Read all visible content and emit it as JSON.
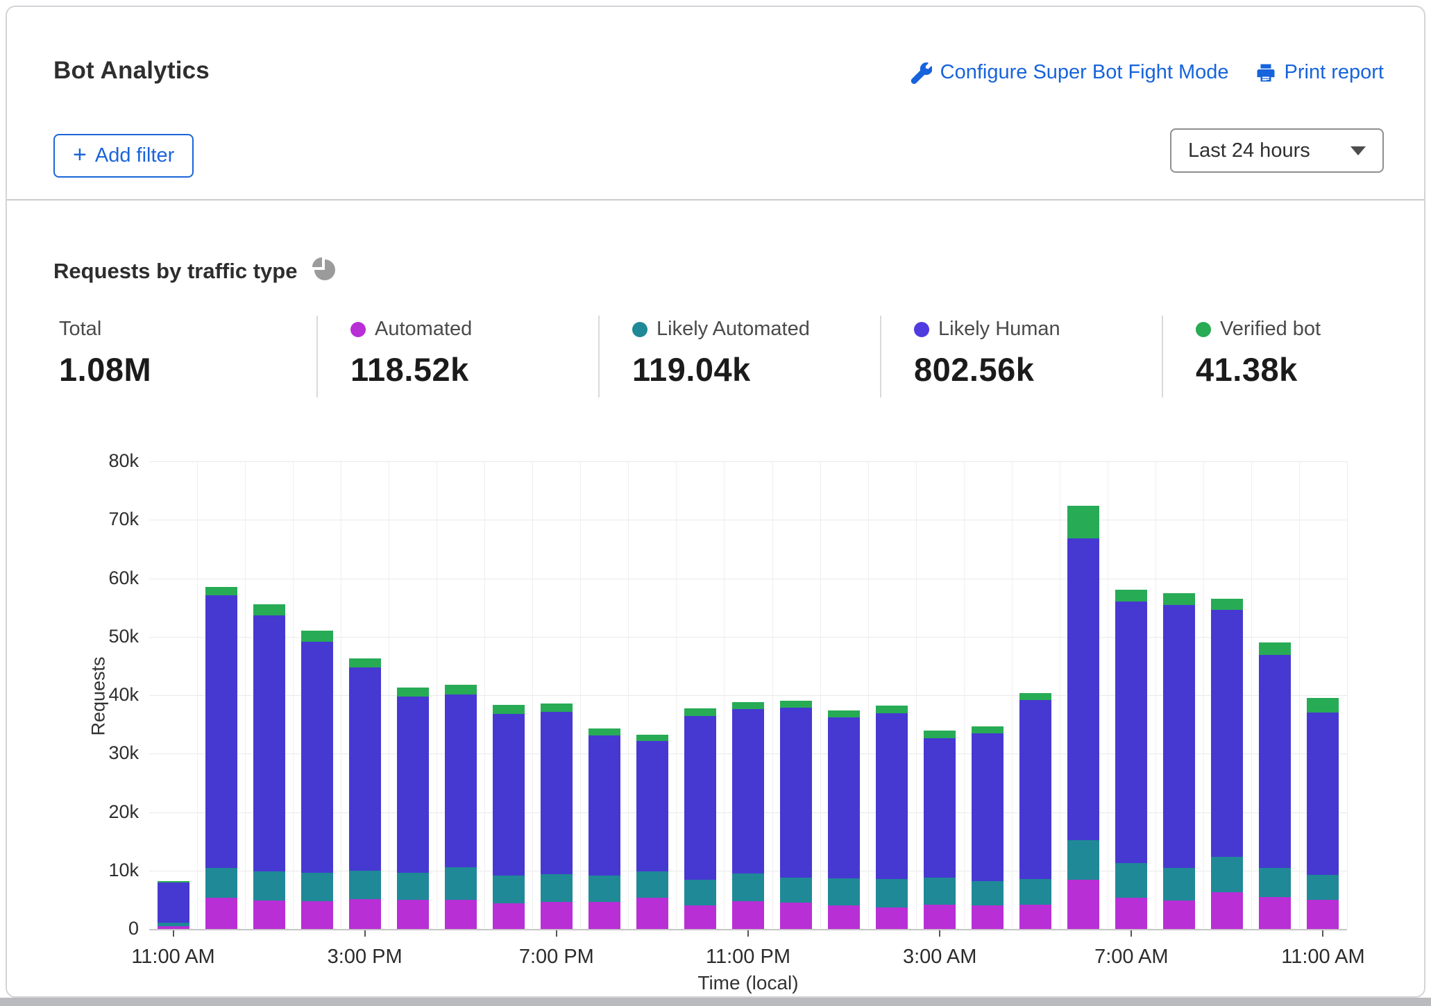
{
  "header": {
    "title": "Bot Analytics",
    "configure_link": "Configure Super Bot Fight Mode",
    "print_link": "Print report",
    "add_filter_label": "Add filter",
    "time_range_value": "Last 24 hours"
  },
  "section": {
    "title": "Requests by traffic type"
  },
  "colors": {
    "link_blue": "#1663dc",
    "automated": "#b82fd6",
    "likely_automated": "#1f8997",
    "likely_human": "#4639d1",
    "likely_human_dot": "#4f3be0",
    "verified_bot": "#27ab55",
    "pie_icon_gray": "#9b9b9b"
  },
  "stats": [
    {
      "label": "Total",
      "value": "1.08M",
      "dot": null
    },
    {
      "label": "Automated",
      "value": "118.52k",
      "dot": "#b82fd6"
    },
    {
      "label": "Likely Automated",
      "value": "119.04k",
      "dot": "#1f8997"
    },
    {
      "label": "Likely Human",
      "value": "802.56k",
      "dot": "#4f3be0"
    },
    {
      "label": "Verified bot",
      "value": "41.38k",
      "dot": "#27ab55"
    }
  ],
  "chart_data": {
    "type": "bar",
    "stacked": true,
    "ylabel": "Requests",
    "xlabel": "Time (local)",
    "ylim": [
      0,
      80000
    ],
    "ytick_labels": [
      "0",
      "10k",
      "20k",
      "30k",
      "40k",
      "50k",
      "60k",
      "70k",
      "80k"
    ],
    "grid": true,
    "legend_position": "top-stats-row",
    "categories": [
      "11:00 AM",
      "12:00 PM",
      "1:00 PM",
      "2:00 PM",
      "3:00 PM",
      "4:00 PM",
      "5:00 PM",
      "6:00 PM",
      "7:00 PM",
      "8:00 PM",
      "9:00 PM",
      "10:00 PM",
      "11:00 PM",
      "12:00 AM",
      "1:00 AM",
      "2:00 AM",
      "3:00 AM",
      "4:00 AM",
      "5:00 AM",
      "6:00 AM",
      "7:00 AM",
      "8:00 AM",
      "9:00 AM",
      "10:00 AM",
      "11:00 AM"
    ],
    "x_tick_indices": [
      0,
      4,
      8,
      12,
      16,
      20,
      24
    ],
    "series": [
      {
        "name": "Automated",
        "color": "#b82fd6",
        "values": [
          500,
          5300,
          4900,
          4800,
          5100,
          5000,
          5000,
          4400,
          4600,
          4600,
          5400,
          4000,
          4700,
          4500,
          4000,
          3700,
          4200,
          4000,
          4200,
          8400,
          5400,
          4900,
          6300,
          5500,
          5000
        ]
      },
      {
        "name": "Likely Automated",
        "color": "#1f8997",
        "values": [
          600,
          5200,
          5000,
          4800,
          4900,
          4600,
          5600,
          4800,
          4800,
          4600,
          4400,
          4400,
          4800,
          4300,
          4700,
          4800,
          4600,
          4200,
          4400,
          6800,
          5900,
          5500,
          6000,
          5000,
          4300
        ]
      },
      {
        "name": "Likely Human",
        "color": "#4639d1",
        "values": [
          6800,
          46600,
          43800,
          39500,
          34700,
          30200,
          29500,
          27600,
          27800,
          23900,
          22400,
          28000,
          28100,
          29100,
          27500,
          28400,
          23800,
          25300,
          30600,
          51600,
          44700,
          45000,
          42300,
          36400,
          27700
        ]
      },
      {
        "name": "Verified bot",
        "color": "#27ab55",
        "values": [
          300,
          1400,
          1800,
          1900,
          1600,
          1500,
          1700,
          1500,
          1400,
          1200,
          1000,
          1400,
          1200,
          1100,
          1200,
          1300,
          1400,
          1200,
          1200,
          5600,
          2000,
          2000,
          1900,
          2100,
          2500
        ]
      }
    ]
  }
}
